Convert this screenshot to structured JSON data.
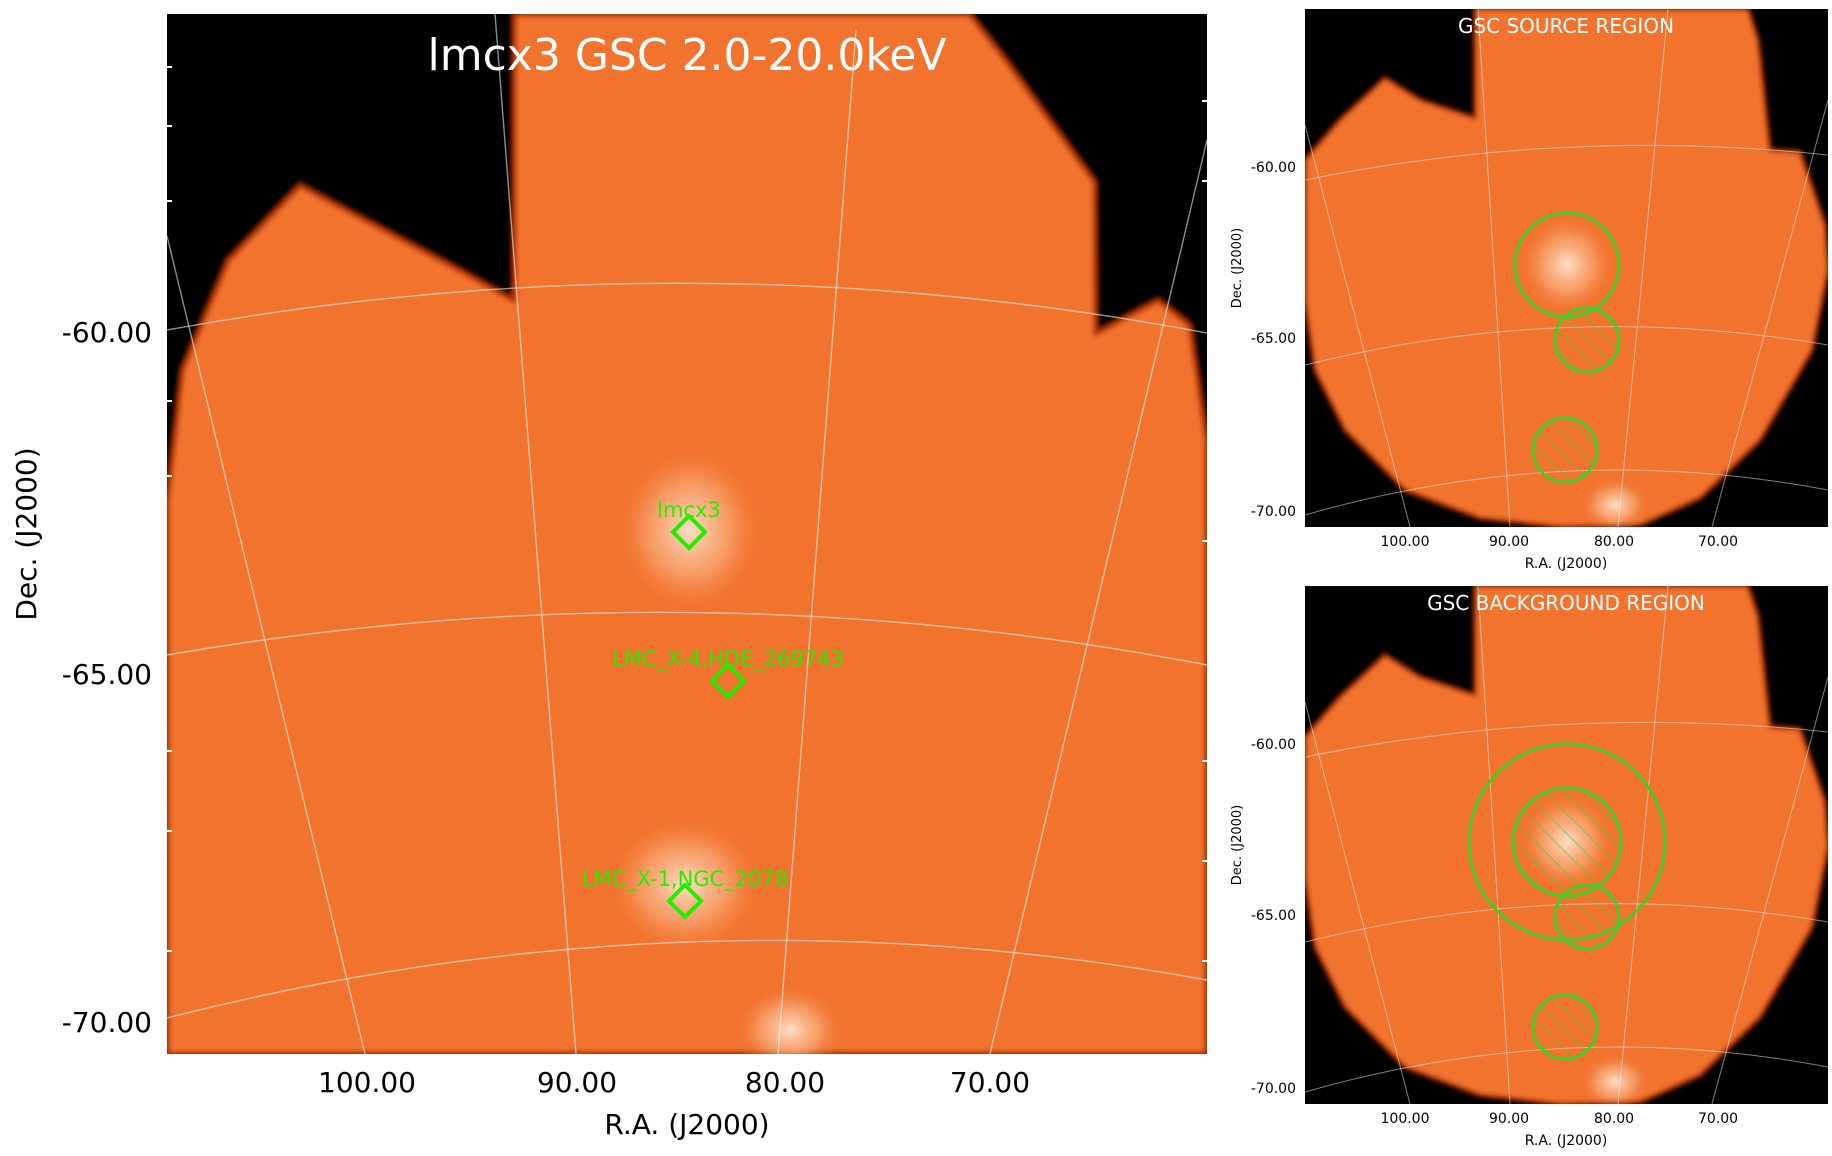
{
  "main": {
    "title": "lmcx3 GSC 2.0-20.0keV",
    "xlabel": "R.A. (J2000)",
    "ylabel": "Dec. (J2000)",
    "xticks": [
      "100.00",
      "90.00",
      "80.00",
      "70.00"
    ],
    "yticks": [
      "-60.00",
      "-65.00",
      "-70.00"
    ],
    "sources": [
      {
        "label": "lmcx3"
      },
      {
        "label": "LMC_X-4,HDE_269743"
      },
      {
        "label": "LMC_X-1,NGC_2078"
      }
    ]
  },
  "source_panel": {
    "title": "GSC SOURCE REGION",
    "xlabel": "R.A. (J2000)",
    "ylabel": "Dec. (J2000)",
    "xticks": [
      "100.00",
      "90.00",
      "80.00",
      "70.00"
    ],
    "yticks": [
      "-60.00",
      "-65.00",
      "-70.00"
    ]
  },
  "background_panel": {
    "title": "GSC BACKGROUND REGION",
    "xlabel": "R.A. (J2000)",
    "ylabel": "Dec. (J2000)",
    "xticks": [
      "100.00",
      "90.00",
      "80.00",
      "70.00"
    ],
    "yticks": [
      "-60.00",
      "-65.00",
      "-70.00"
    ]
  },
  "colors": {
    "map_fill": "#f2732e",
    "background": "#000000",
    "region": "#22dd22",
    "source_label": "#22ee00"
  }
}
